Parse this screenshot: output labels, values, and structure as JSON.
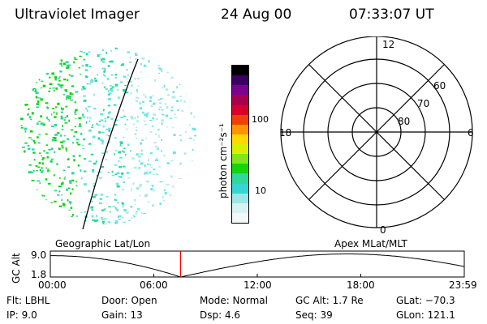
{
  "header": {
    "title": "Ultraviolet Imager",
    "date": "24 Aug 00",
    "time": "07:33:07 UT"
  },
  "colorbar": {
    "unit_label": "photon cm⁻²s⁻¹",
    "ticks": [
      "100",
      "10"
    ],
    "colors": [
      "#000000",
      "#3a0060",
      "#7a0090",
      "#a80050",
      "#d8002a",
      "#f04000",
      "#ff9400",
      "#ffd800",
      "#d8f000",
      "#7ee81a",
      "#14d40a",
      "#2ed89a",
      "#38d4d4",
      "#9ce6e6",
      "#d8f2f2",
      "#f2f8f8"
    ]
  },
  "geo_panel": {
    "label": "Geographic Lat/Lon",
    "dot_colors": [
      "#18d218",
      "#2ed89a",
      "#6ce4e4",
      "#b4eaea"
    ]
  },
  "polar_panel": {
    "label": "Apex MLat/MLT",
    "mlt_labels": {
      "top": "12",
      "left": "18",
      "right": "6",
      "bottom": "0"
    },
    "lat_labels": [
      "60",
      "70",
      "80"
    ]
  },
  "altitude_plot": {
    "ylabel": "GC Alt",
    "ytick_top": "9.0",
    "ytick_bottom": "1.8",
    "xticks": [
      "00:00",
      "06:00",
      "12:00",
      "18:00",
      "23:59"
    ],
    "marker_time": "07:33",
    "marker_color": "#ff0000"
  },
  "status": {
    "flt": "Flt:  LBHL",
    "ip": "IP:  9.0",
    "door": "Door:  Open",
    "gain": "Gain:  13",
    "mode": "Mode:  Normal",
    "dsp": "Dsp:     4.6",
    "gc_alt": "GC Alt:  1.7 Re",
    "seq": "Seq:  39",
    "glat": "GLat:  −70.3",
    "glon": "GLon:  121.1"
  }
}
